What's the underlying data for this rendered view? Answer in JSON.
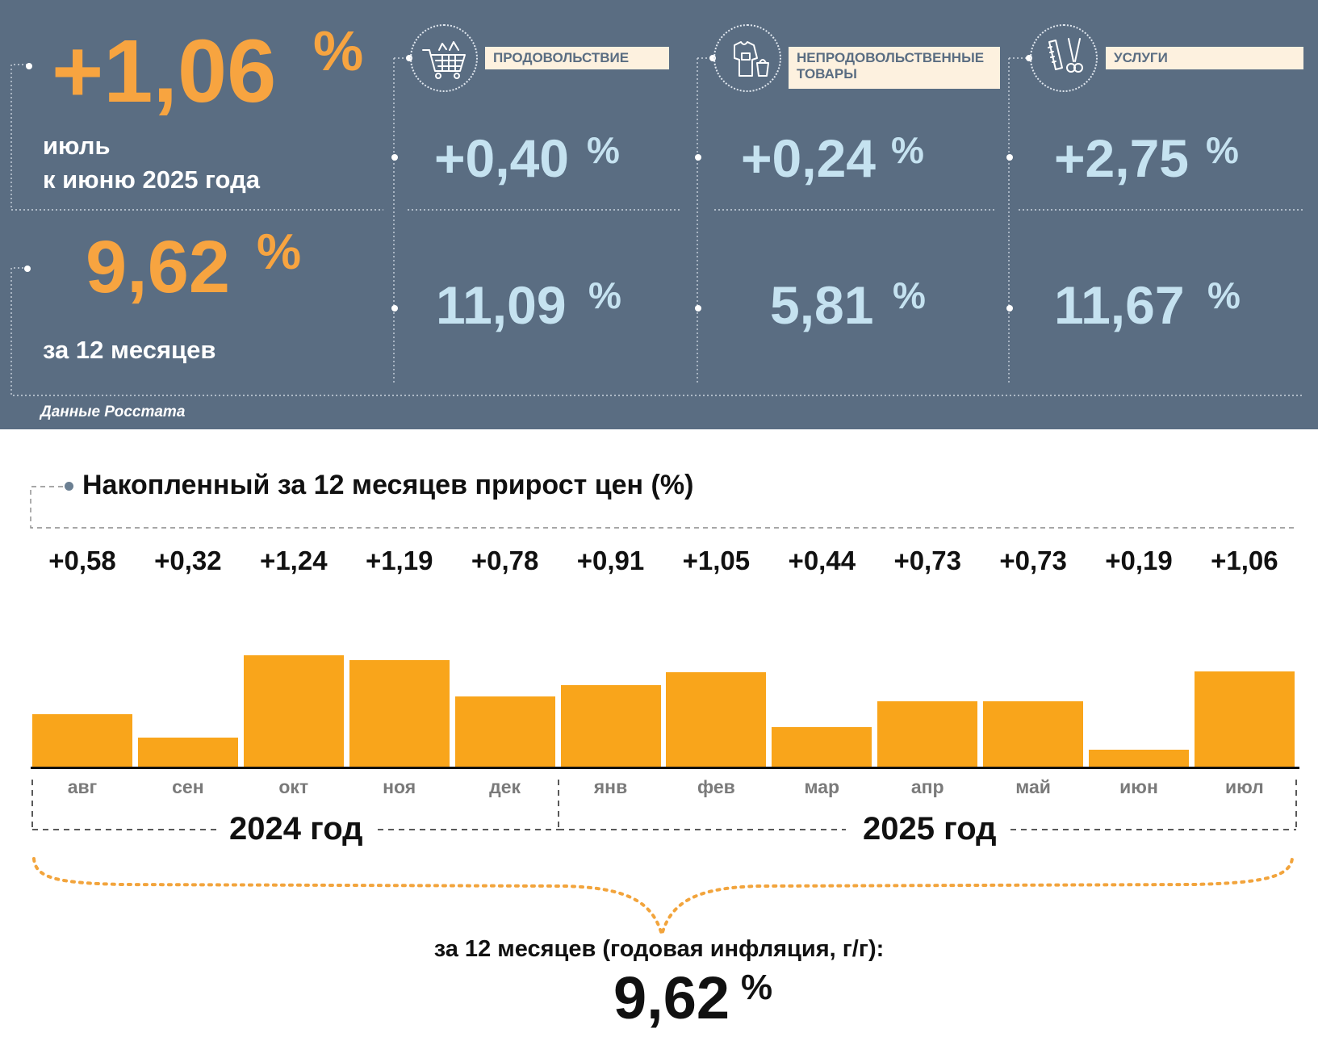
{
  "top": {
    "month_change_value": "+1,06",
    "month_change_unit": "%",
    "month_change_caption_1": "июль",
    "month_change_caption_2": "к июню 2025 года",
    "year_change_value": "9,62",
    "year_change_unit": "%",
    "year_change_caption": "за 12 месяцев",
    "source": "Данные Росстата",
    "categories": [
      {
        "label_1": "ПРОДОВОЛЬСТВИЕ",
        "label_2": "",
        "icon": "shopping-cart-icon",
        "month": "+0,40",
        "year": "11,09",
        "unit": "%"
      },
      {
        "label_1": "НЕПРОДОВОЛЬСТВЕННЫЕ",
        "label_2": "ТОВАРЫ",
        "icon": "clothing-icon",
        "month": "+0,24",
        "year": "5,81",
        "unit": "%"
      },
      {
        "label_1": "УСЛУГИ",
        "label_2": "",
        "icon": "scissors-comb-icon",
        "month": "+2,75",
        "year": "11,67",
        "unit": "%"
      }
    ]
  },
  "chart_data": {
    "type": "bar",
    "title": "Накопленный за 12 месяцев прирост цен (%)",
    "categories": [
      "авг",
      "сен",
      "окт",
      "ноя",
      "дек",
      "янв",
      "фев",
      "мар",
      "апр",
      "май",
      "июн",
      "июл"
    ],
    "values": [
      0.58,
      0.32,
      1.24,
      1.19,
      0.78,
      0.91,
      1.05,
      0.44,
      0.73,
      0.73,
      0.19,
      1.06
    ],
    "value_labels": [
      "+0,58",
      "+0,32",
      "+1,24",
      "+1,19",
      "+0,78",
      "+0,91",
      "+1,05",
      "+0,44",
      "+0,73",
      "+0,73",
      "+0,19",
      "+1,06"
    ],
    "year_groups": [
      {
        "label": "2024 год",
        "months": 5
      },
      {
        "label": "2025 год",
        "months": 7
      }
    ],
    "bar_color": "#f9a51b",
    "annual_caption": "за 12 месяцев (годовая инфляция, г/г):",
    "annual_value": "9,62",
    "annual_unit": "%"
  }
}
